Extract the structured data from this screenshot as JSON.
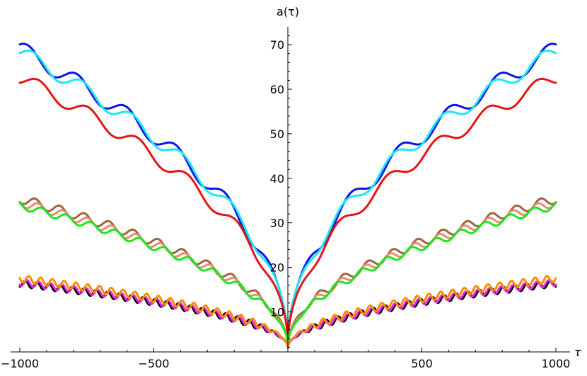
{
  "chart_data": {
    "type": "line",
    "title": "",
    "xlabel": "τ",
    "ylabel": "a(τ)",
    "xlim": [
      -1000,
      1000
    ],
    "ylim": [
      1,
      74
    ],
    "x_ticks": [
      -1000,
      -500,
      0,
      500,
      1000
    ],
    "x_tick_labels": [
      "-1000",
      "-500",
      "",
      "500",
      "1000"
    ],
    "y_ticks": [
      10,
      20,
      30,
      40,
      50,
      60,
      70
    ],
    "y_tick_labels": [
      "10",
      "20",
      "30",
      "40",
      "50",
      "60",
      "70"
    ],
    "legend": "none",
    "grid": false,
    "series": [
      {
        "color": "#0a14e6",
        "base": 2.8,
        "end": 69.0,
        "amp": 1.9,
        "period": 185,
        "phase": 0.0
      },
      {
        "color": "#1ee6f5",
        "base": 3.0,
        "end": 68.3,
        "amp": 1.7,
        "period": 185,
        "phase": 0.7
      },
      {
        "color": "#e61414",
        "base": 2.6,
        "end": 62.6,
        "amp": 1.6,
        "period": 185,
        "phase": 1.4
      },
      {
        "color": "#a0643c",
        "base": 2.4,
        "end": 35.4,
        "amp": 1.0,
        "period": 92,
        "phase": 0.0
      },
      {
        "color": "#e68c73",
        "base": 2.3,
        "end": 34.6,
        "amp": 0.9,
        "period": 92,
        "phase": 0.8
      },
      {
        "color": "#1ee61e",
        "base": 2.2,
        "end": 33.9,
        "amp": 0.8,
        "period": 92,
        "phase": 1.6
      },
      {
        "color": "#000000",
        "base": 2.0,
        "end": 16.4,
        "amp": 0.75,
        "period": 44,
        "phase": 0.0
      },
      {
        "color": "#e628e6",
        "base": 2.0,
        "end": 16.6,
        "amp": 0.7,
        "period": 44,
        "phase": 0.9
      },
      {
        "color": "#ff8c00",
        "base": 2.1,
        "end": 17.5,
        "amp": 0.8,
        "period": 44,
        "phase": 1.8
      }
    ]
  }
}
